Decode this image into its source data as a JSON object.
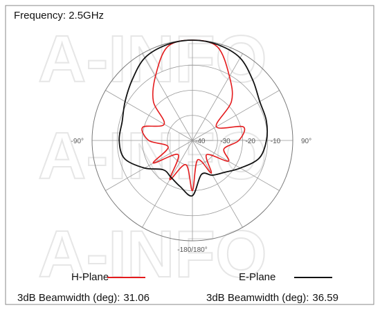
{
  "chart_data": {
    "type": "polar",
    "title": "Frequency: 2.5GHz",
    "watermark": "A-INFO",
    "theta": [
      -180,
      -165,
      -150,
      -135,
      -120,
      -105,
      -90,
      -75,
      -60,
      -45,
      -30,
      -15,
      0,
      15,
      30,
      45,
      60,
      75,
      90,
      105,
      120,
      135,
      150,
      165
    ],
    "series": [
      {
        "name": "H-Plane",
        "color": "#e41a1c",
        "values": [
          -20,
          -30,
          -22,
          -32,
          -22,
          -30,
          -22.6,
          -19.5,
          -27,
          -18,
          -10.5,
          -1.4,
          0,
          -1.4,
          -10.5,
          -18,
          -29,
          -19,
          -21.5,
          -27,
          -23.5,
          -32,
          -25,
          -32
        ],
        "beamwidth_label": "3dB Beamwidth (deg):",
        "beamwidth": 31.06
      },
      {
        "name": "E-Plane",
        "color": "#111111",
        "values": [
          -18,
          -21,
          -23,
          -23.5,
          -18,
          -12,
          -10.8,
          -11,
          -9,
          -6,
          -2,
          -0.5,
          0,
          -0.5,
          -2,
          -6,
          -9,
          -9.5,
          -10.5,
          -12.5,
          -18,
          -22,
          -24,
          -26
        ],
        "beamwidth_label": "3dB Beamwidth (deg):",
        "beamwidth": 36.59
      }
    ],
    "rlim": [
      -40,
      0
    ],
    "rticks": [
      -40,
      -30,
      -20,
      -10
    ],
    "spokes": [
      -150,
      -120,
      -90,
      -60,
      -30,
      0,
      30,
      60,
      90,
      120,
      150,
      180
    ],
    "thetaticks": [
      {
        "value": -90,
        "label": "-90°"
      },
      {
        "value": 90,
        "label": "90°"
      },
      {
        "value": 180,
        "label": "-180/180°"
      }
    ]
  }
}
